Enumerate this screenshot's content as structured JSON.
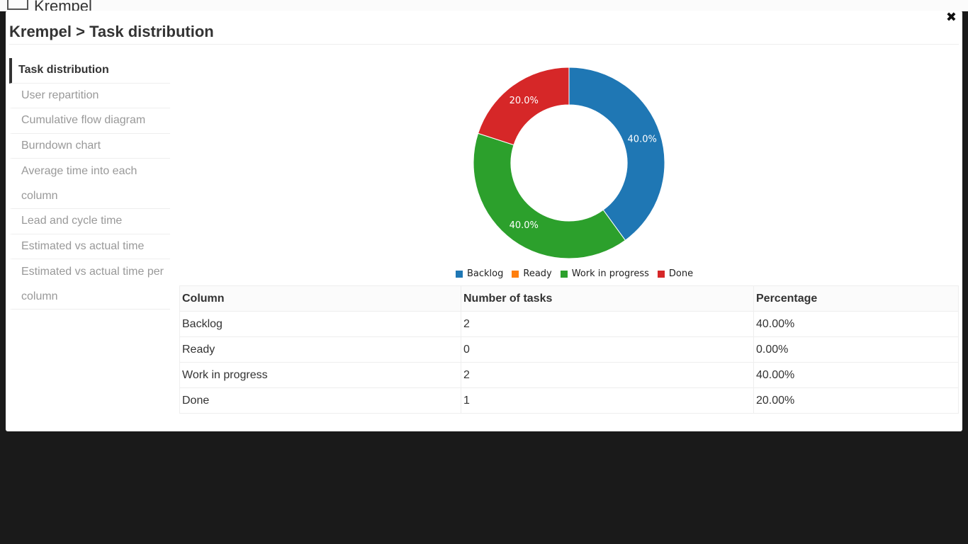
{
  "backdrop": {
    "app_title": "Krempel"
  },
  "modal": {
    "close_label": "✖",
    "title": "Krempel > Task distribution"
  },
  "sidebar": {
    "items": [
      {
        "label": "Task distribution",
        "active": true
      },
      {
        "label": "User repartition"
      },
      {
        "label": "Cumulative flow diagram"
      },
      {
        "label": "Burndown chart"
      },
      {
        "label": "Average time into each column"
      },
      {
        "label": "Lead and cycle time"
      },
      {
        "label": "Estimated vs actual time"
      },
      {
        "label": "Estimated vs actual time per column"
      }
    ]
  },
  "chart_data": {
    "type": "pie",
    "variant": "donut",
    "categories": [
      "Backlog",
      "Ready",
      "Work in progress",
      "Done"
    ],
    "values": [
      40.0,
      0.0,
      40.0,
      20.0
    ],
    "slice_labels": [
      "40.0%",
      "",
      "40.0%",
      "20.0%"
    ],
    "colors": [
      "#1f77b4",
      "#ff7f0e",
      "#2ca02c",
      "#d62728"
    ],
    "legend_position": "bottom"
  },
  "table": {
    "headers": [
      "Column",
      "Number of tasks",
      "Percentage"
    ],
    "rows": [
      [
        "Backlog",
        "2",
        "40.00%"
      ],
      [
        "Ready",
        "0",
        "0.00%"
      ],
      [
        "Work in progress",
        "2",
        "40.00%"
      ],
      [
        "Done",
        "1",
        "20.00%"
      ]
    ]
  }
}
